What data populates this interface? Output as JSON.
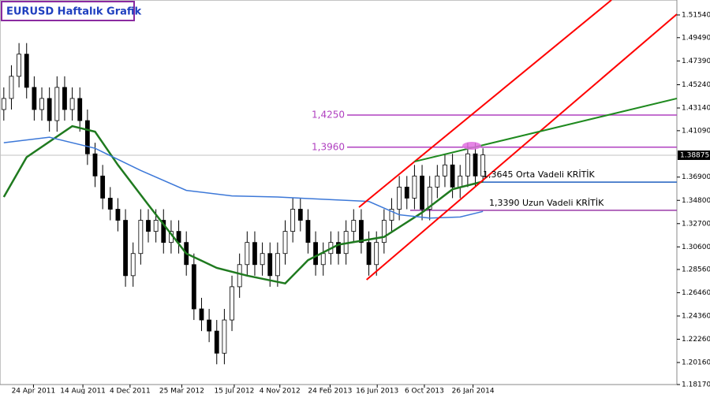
{
  "chart_data": {
    "type": "candlestick",
    "title": "EURUSD Haftalık Grafik",
    "xlim": [
      -0.5,
      88.5
    ],
    "ylim": [
      1.1817,
      1.5289
    ],
    "xticks": [
      {
        "value": 3.9,
        "label": "24 Apr 2011"
      },
      {
        "value": 10.4,
        "label": "14 Aug 2011"
      },
      {
        "value": 16.6,
        "label": "4 Dec 2011"
      },
      {
        "value": 23.4,
        "label": "25 Mar 2012"
      },
      {
        "value": 30.3,
        "label": "15 Jul 2012"
      },
      {
        "value": 36.3,
        "label": "4 Nov 2012"
      },
      {
        "value": 42.9,
        "label": "24 Feb 2013"
      },
      {
        "value": 49.1,
        "label": "16 Jun 2013"
      },
      {
        "value": 55.3,
        "label": "6 Oct 2013"
      },
      {
        "value": 61.7,
        "label": "26 Jan 2014"
      }
    ],
    "yticks": [
      {
        "value": 1.5154,
        "label": "1.51540"
      },
      {
        "value": 1.4949,
        "label": "1.49490"
      },
      {
        "value": 1.4739,
        "label": "1.47390"
      },
      {
        "value": 1.4524,
        "label": "1.45240"
      },
      {
        "value": 1.4314,
        "label": "1.43140"
      },
      {
        "value": 1.4109,
        "label": "1.41090"
      },
      {
        "value": 1.369,
        "label": "1.36900"
      },
      {
        "value": 1.348,
        "label": "1.34800"
      },
      {
        "value": 1.327,
        "label": "1.32700"
      },
      {
        "value": 1.306,
        "label": "1.30600"
      },
      {
        "value": 1.2856,
        "label": "1.28560"
      },
      {
        "value": 1.2646,
        "label": "1.26460"
      },
      {
        "value": 1.2436,
        "label": "1.24360"
      },
      {
        "value": 1.2226,
        "label": "1.22260"
      },
      {
        "value": 1.2016,
        "label": "1.20160"
      },
      {
        "value": 1.1817,
        "label": "1.18170"
      }
    ],
    "current_price": {
      "value": 1.38875,
      "label": "1.38875"
    },
    "open": [
      1.43,
      1.44,
      1.46,
      1.48,
      1.45,
      1.43,
      1.44,
      1.42,
      1.45,
      1.43,
      1.44,
      1.42,
      1.39,
      1.37,
      1.35,
      1.34,
      1.33,
      1.28,
      1.3,
      1.33,
      1.32,
      1.33,
      1.31,
      1.32,
      1.31,
      1.29,
      1.25,
      1.24,
      1.23,
      1.21,
      1.24,
      1.27,
      1.29,
      1.31,
      1.29,
      1.3,
      1.28,
      1.3,
      1.32,
      1.34,
      1.33,
      1.31,
      1.29,
      1.3,
      1.31,
      1.3,
      1.32,
      1.33,
      1.31,
      1.29,
      1.31,
      1.33,
      1.34,
      1.36,
      1.35,
      1.37,
      1.34,
      1.36,
      1.37,
      1.38,
      1.36,
      1.37,
      1.39,
      1.37
    ],
    "close": [
      1.44,
      1.46,
      1.48,
      1.45,
      1.43,
      1.44,
      1.42,
      1.45,
      1.43,
      1.44,
      1.42,
      1.39,
      1.37,
      1.35,
      1.34,
      1.33,
      1.28,
      1.3,
      1.33,
      1.32,
      1.33,
      1.31,
      1.32,
      1.31,
      1.29,
      1.25,
      1.24,
      1.23,
      1.21,
      1.24,
      1.27,
      1.29,
      1.31,
      1.29,
      1.3,
      1.28,
      1.3,
      1.32,
      1.34,
      1.33,
      1.31,
      1.29,
      1.3,
      1.31,
      1.3,
      1.32,
      1.33,
      1.31,
      1.29,
      1.31,
      1.33,
      1.34,
      1.36,
      1.35,
      1.37,
      1.34,
      1.36,
      1.37,
      1.38,
      1.36,
      1.37,
      1.39,
      1.37,
      1.389
    ],
    "high": [
      1.45,
      1.47,
      1.49,
      1.49,
      1.46,
      1.45,
      1.45,
      1.46,
      1.46,
      1.45,
      1.45,
      1.43,
      1.4,
      1.38,
      1.36,
      1.35,
      1.34,
      1.31,
      1.34,
      1.34,
      1.34,
      1.34,
      1.33,
      1.33,
      1.32,
      1.3,
      1.26,
      1.25,
      1.24,
      1.25,
      1.28,
      1.3,
      1.32,
      1.32,
      1.31,
      1.31,
      1.31,
      1.33,
      1.35,
      1.35,
      1.34,
      1.32,
      1.31,
      1.32,
      1.32,
      1.33,
      1.34,
      1.34,
      1.32,
      1.32,
      1.34,
      1.35,
      1.37,
      1.37,
      1.38,
      1.38,
      1.37,
      1.38,
      1.39,
      1.39,
      1.38,
      1.4,
      1.4,
      1.395
    ],
    "low": [
      1.42,
      1.43,
      1.45,
      1.44,
      1.42,
      1.42,
      1.41,
      1.41,
      1.42,
      1.42,
      1.41,
      1.38,
      1.36,
      1.34,
      1.33,
      1.32,
      1.27,
      1.27,
      1.29,
      1.31,
      1.31,
      1.3,
      1.3,
      1.3,
      1.28,
      1.24,
      1.23,
      1.22,
      1.2,
      1.2,
      1.23,
      1.26,
      1.28,
      1.28,
      1.28,
      1.27,
      1.27,
      1.29,
      1.31,
      1.32,
      1.3,
      1.28,
      1.28,
      1.29,
      1.29,
      1.29,
      1.31,
      1.3,
      1.28,
      1.28,
      1.3,
      1.32,
      1.33,
      1.34,
      1.34,
      1.33,
      1.33,
      1.35,
      1.36,
      1.35,
      1.35,
      1.36,
      1.36,
      1.365
    ],
    "series": [
      {
        "color": "#1f7a1f",
        "x": [
          0,
          3,
          9,
          12,
          15,
          19,
          24,
          28,
          32,
          37,
          40,
          44,
          50,
          55,
          59,
          63
        ],
        "values": [
          1.351,
          1.387,
          1.415,
          1.41,
          1.38,
          1.344,
          1.3,
          1.287,
          1.28,
          1.273,
          1.294,
          1.308,
          1.315,
          1.337,
          1.358,
          1.365
        ]
      },
      {
        "color": "#3c78d8",
        "x": [
          0,
          6,
          12,
          18,
          24,
          30,
          36,
          42,
          48,
          52,
          56,
          60,
          63
        ],
        "values": [
          1.4,
          1.405,
          1.395,
          1.375,
          1.357,
          1.352,
          1.351,
          1.349,
          1.347,
          1.335,
          1.332,
          1.333,
          1.338
        ]
      }
    ],
    "trend_lines": [
      {
        "color": "#ff0000",
        "x": [
          46.7,
          79.9
        ],
        "values": [
          1.3418,
          1.5289
        ]
      },
      {
        "color": "#ff0000",
        "x": [
          47.7,
          88.5
        ],
        "values": [
          1.2763,
          1.5161
        ]
      },
      {
        "color": "#1f8a1f",
        "x": [
          54,
          88.5
        ],
        "values": [
          1.383,
          1.44
        ]
      }
    ],
    "levels": [
      {
        "value": 1.425,
        "label": "1,4250",
        "color": "#b040c0"
      },
      {
        "value": 1.396,
        "label": "1,3960",
        "color": "#b040c0"
      },
      {
        "value": 1.3645,
        "label": "1,3645 Orta Vadeli KRİTİK",
        "color": "#1f5fbf"
      },
      {
        "value": 1.339,
        "label": "1,3390 Uzun Vadeli KRİTİK",
        "color": "#9a3aa8"
      }
    ]
  }
}
